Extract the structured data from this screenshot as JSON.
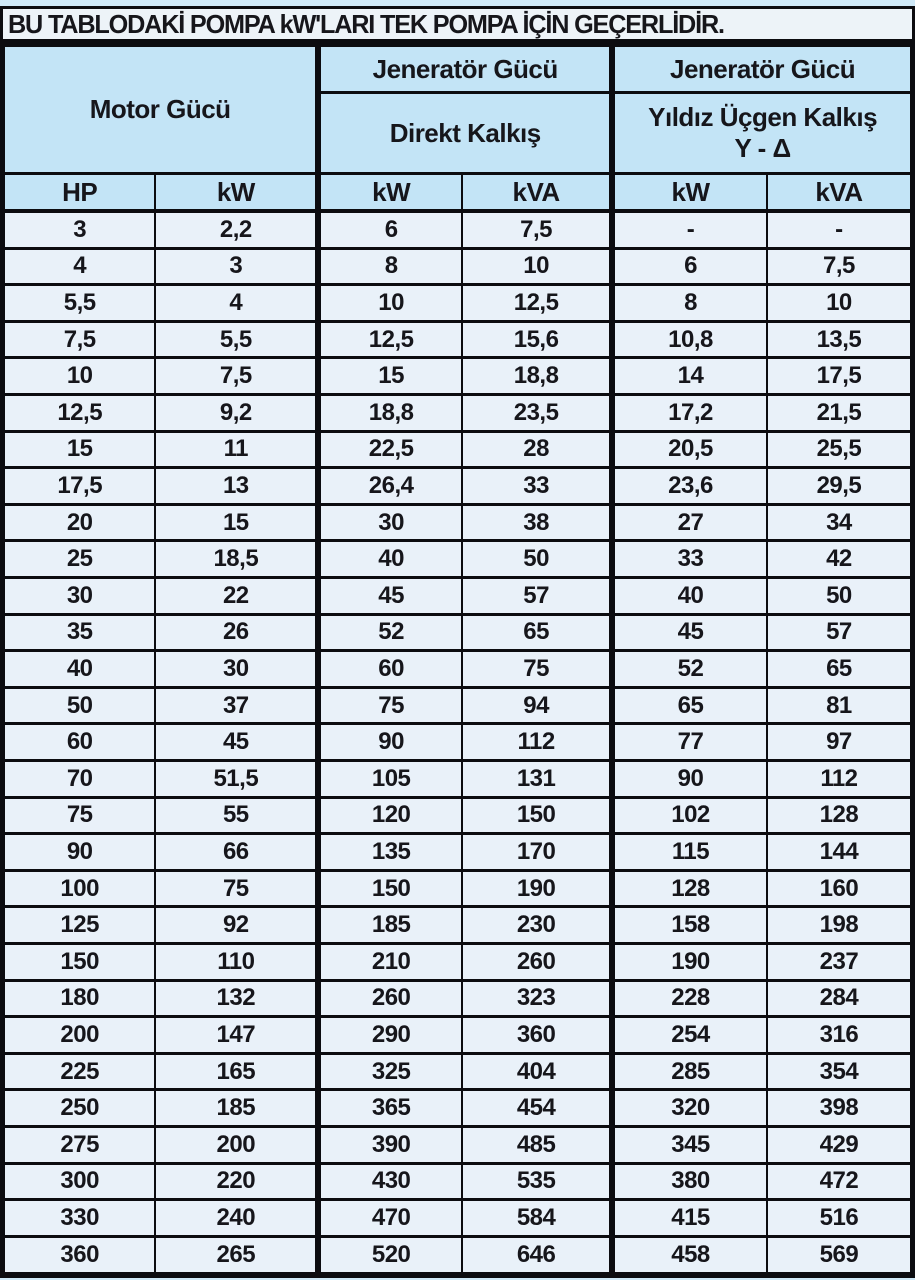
{
  "title": "BU TABLODAKİ POMPA kW'LARI TEK POMPA İÇİN GEÇERLİDİR.",
  "colors": {
    "page_background": "#cfe9f8",
    "title_background": "#edf3f8",
    "header_cell_background": "#c3e4f6",
    "data_cell_background": "#e9f1f9",
    "border": "#0c0c10",
    "text": "#16161b"
  },
  "chart_data": {
    "type": "table",
    "title": "BU TABLODAKİ POMPA kW'LARI TEK POMPA İÇİN GEÇERLİDİR.",
    "column_groups": [
      {
        "label": "Motor Gücü",
        "sublabel": "",
        "sublabel2": "",
        "columns": [
          "HP",
          "kW"
        ]
      },
      {
        "label": "Jeneratör Gücü",
        "sublabel": "Direkt Kalkış",
        "sublabel2": "",
        "columns": [
          "kW",
          "kVA"
        ]
      },
      {
        "label": "Jeneratör Gücü",
        "sublabel": "Yıldız Üçgen Kalkış",
        "sublabel2": "Y - Δ",
        "columns": [
          "kW",
          "kVA"
        ]
      }
    ],
    "rows": [
      [
        "3",
        "2,2",
        "6",
        "7,5",
        "-",
        "-"
      ],
      [
        "4",
        "3",
        "8",
        "10",
        "6",
        "7,5"
      ],
      [
        "5,5",
        "4",
        "10",
        "12,5",
        "8",
        "10"
      ],
      [
        "7,5",
        "5,5",
        "12,5",
        "15,6",
        "10,8",
        "13,5"
      ],
      [
        "10",
        "7,5",
        "15",
        "18,8",
        "14",
        "17,5"
      ],
      [
        "12,5",
        "9,2",
        "18,8",
        "23,5",
        "17,2",
        "21,5"
      ],
      [
        "15",
        "11",
        "22,5",
        "28",
        "20,5",
        "25,5"
      ],
      [
        "17,5",
        "13",
        "26,4",
        "33",
        "23,6",
        "29,5"
      ],
      [
        "20",
        "15",
        "30",
        "38",
        "27",
        "34"
      ],
      [
        "25",
        "18,5",
        "40",
        "50",
        "33",
        "42"
      ],
      [
        "30",
        "22",
        "45",
        "57",
        "40",
        "50"
      ],
      [
        "35",
        "26",
        "52",
        "65",
        "45",
        "57"
      ],
      [
        "40",
        "30",
        "60",
        "75",
        "52",
        "65"
      ],
      [
        "50",
        "37",
        "75",
        "94",
        "65",
        "81"
      ],
      [
        "60",
        "45",
        "90",
        "112",
        "77",
        "97"
      ],
      [
        "70",
        "51,5",
        "105",
        "131",
        "90",
        "112"
      ],
      [
        "75",
        "55",
        "120",
        "150",
        "102",
        "128"
      ],
      [
        "90",
        "66",
        "135",
        "170",
        "115",
        "144"
      ],
      [
        "100",
        "75",
        "150",
        "190",
        "128",
        "160"
      ],
      [
        "125",
        "92",
        "185",
        "230",
        "158",
        "198"
      ],
      [
        "150",
        "110",
        "210",
        "260",
        "190",
        "237"
      ],
      [
        "180",
        "132",
        "260",
        "323",
        "228",
        "284"
      ],
      [
        "200",
        "147",
        "290",
        "360",
        "254",
        "316"
      ],
      [
        "225",
        "165",
        "325",
        "404",
        "285",
        "354"
      ],
      [
        "250",
        "185",
        "365",
        "454",
        "320",
        "398"
      ],
      [
        "275",
        "200",
        "390",
        "485",
        "345",
        "429"
      ],
      [
        "300",
        "220",
        "430",
        "535",
        "380",
        "472"
      ],
      [
        "330",
        "240",
        "470",
        "584",
        "415",
        "516"
      ],
      [
        "360",
        "265",
        "520",
        "646",
        "458",
        "569"
      ]
    ]
  }
}
